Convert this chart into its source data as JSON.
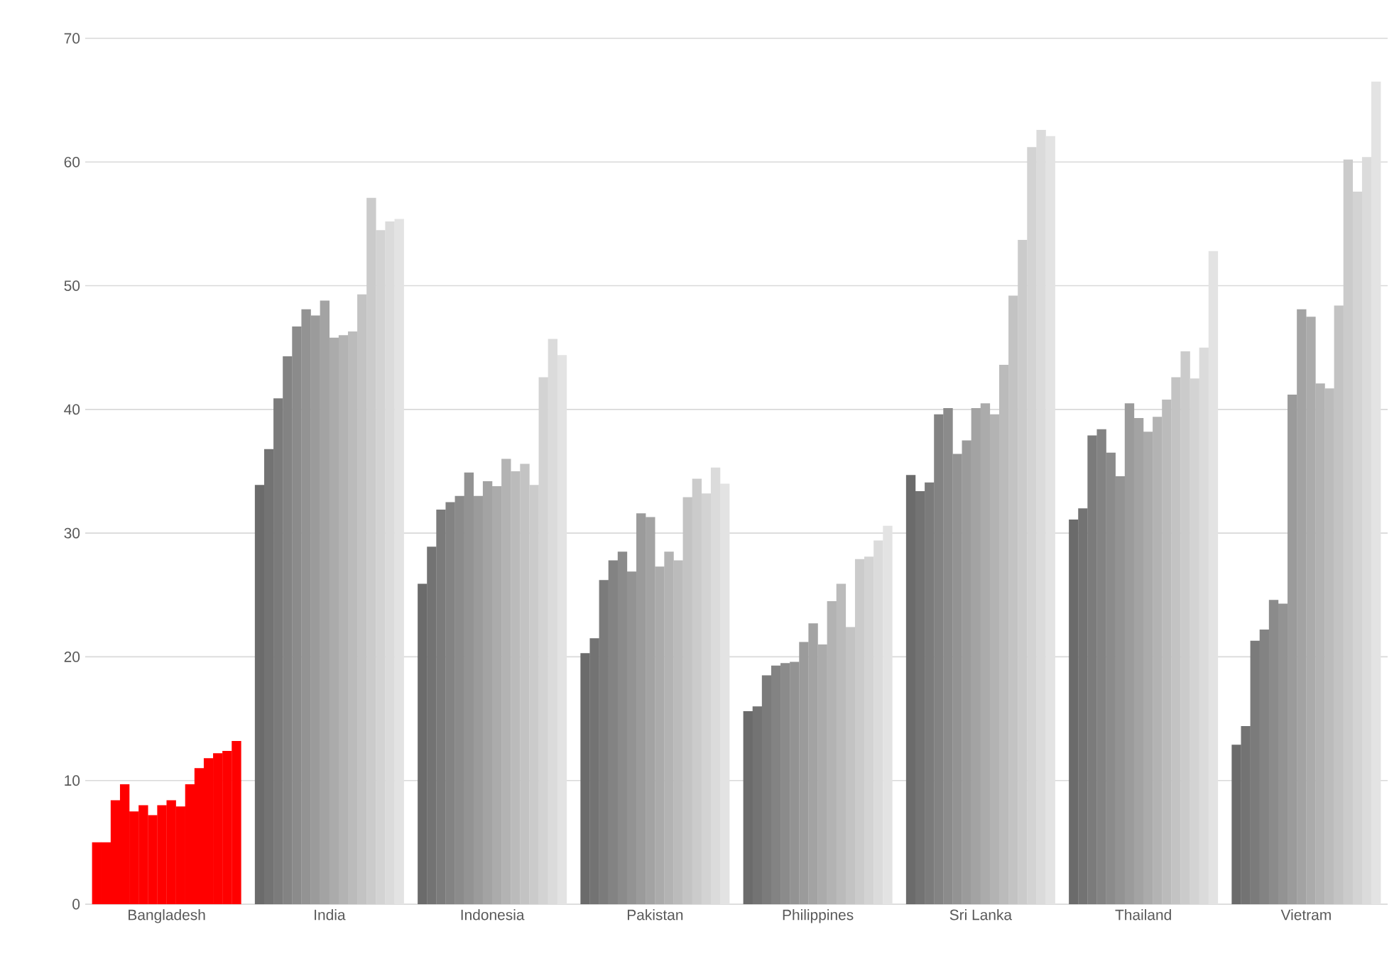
{
  "chart_data": {
    "type": "bar",
    "categories": [
      "Bangladesh",
      "India",
      "Indonesia",
      "Pakistan",
      "Philippines",
      "Sri Lanka",
      "Thailand",
      "Vietram"
    ],
    "ylim": [
      0,
      70
    ],
    "yticks": [
      0,
      10,
      20,
      30,
      40,
      50,
      60,
      70
    ],
    "grid": "y",
    "series": [
      {
        "colors": [
          "#ff0000",
          "#6b6b6b",
          "#6b6b6b",
          "#6b6b6b",
          "#6b6b6b",
          "#6b6b6b",
          "#6b6b6b",
          "#6b6b6b"
        ],
        "values": [
          5.0,
          33.9,
          25.9,
          20.3,
          15.6,
          34.7,
          31.1,
          12.9
        ]
      },
      {
        "colors": [
          "#ff0000",
          "#737373",
          "#737373",
          "#737373",
          "#737373",
          "#737373",
          "#737373",
          "#737373"
        ],
        "values": [
          5.0,
          36.8,
          28.9,
          21.5,
          16.0,
          33.4,
          32.0,
          14.4
        ]
      },
      {
        "colors": [
          "#ff0000",
          "#7b7b7b",
          "#7b7b7b",
          "#7b7b7b",
          "#7b7b7b",
          "#7b7b7b",
          "#7b7b7b",
          "#7b7b7b"
        ],
        "values": [
          8.4,
          40.9,
          31.9,
          26.2,
          18.5,
          34.1,
          37.9,
          21.3
        ]
      },
      {
        "colors": [
          "#ff0000",
          "#838383",
          "#838383",
          "#838383",
          "#838383",
          "#838383",
          "#838383",
          "#838383"
        ],
        "values": [
          9.7,
          44.3,
          32.5,
          27.8,
          19.3,
          39.6,
          38.4,
          22.2
        ]
      },
      {
        "colors": [
          "#ff0000",
          "#8b8b8b",
          "#8b8b8b",
          "#8b8b8b",
          "#8b8b8b",
          "#8b8b8b",
          "#8b8b8b",
          "#8b8b8b"
        ],
        "values": [
          7.5,
          46.7,
          33.0,
          28.5,
          19.5,
          40.1,
          36.5,
          24.6
        ]
      },
      {
        "colors": [
          "#ff0000",
          "#939393",
          "#939393",
          "#939393",
          "#939393",
          "#939393",
          "#939393",
          "#939393"
        ],
        "values": [
          8.0,
          48.1,
          34.9,
          26.9,
          19.6,
          36.4,
          34.6,
          24.3
        ]
      },
      {
        "colors": [
          "#ff0000",
          "#9b9b9b",
          "#9b9b9b",
          "#9b9b9b",
          "#9b9b9b",
          "#9b9b9b",
          "#9b9b9b",
          "#9b9b9b"
        ],
        "values": [
          7.2,
          47.6,
          33.0,
          31.6,
          21.2,
          37.5,
          40.5,
          41.2
        ]
      },
      {
        "colors": [
          "#ff0000",
          "#a3a3a3",
          "#a3a3a3",
          "#a3a3a3",
          "#a3a3a3",
          "#a3a3a3",
          "#a3a3a3",
          "#a3a3a3"
        ],
        "values": [
          8.0,
          48.8,
          34.2,
          31.3,
          22.7,
          40.1,
          39.3,
          48.1
        ]
      },
      {
        "colors": [
          "#ff0000",
          "#ababab",
          "#ababab",
          "#ababab",
          "#ababab",
          "#ababab",
          "#ababab",
          "#ababab"
        ],
        "values": [
          8.4,
          45.8,
          33.8,
          27.3,
          21.0,
          40.5,
          38.2,
          47.5
        ]
      },
      {
        "colors": [
          "#ff0000",
          "#b3b3b3",
          "#b3b3b3",
          "#b3b3b3",
          "#b3b3b3",
          "#b3b3b3",
          "#b3b3b3",
          "#b3b3b3"
        ],
        "values": [
          7.9,
          46.0,
          36.0,
          28.5,
          24.5,
          39.6,
          39.4,
          42.1
        ]
      },
      {
        "colors": [
          "#ff0000",
          "#bbbbbb",
          "#bbbbbb",
          "#bbbbbb",
          "#bbbbbb",
          "#bbbbbb",
          "#bbbbbb",
          "#bbbbbb"
        ],
        "values": [
          9.7,
          46.3,
          35.0,
          27.8,
          25.9,
          43.6,
          40.8,
          41.7
        ]
      },
      {
        "colors": [
          "#ff0000",
          "#c3c3c3",
          "#c3c3c3",
          "#c3c3c3",
          "#c3c3c3",
          "#c3c3c3",
          "#c3c3c3",
          "#c3c3c3"
        ],
        "values": [
          11.0,
          49.3,
          35.6,
          32.9,
          22.4,
          49.2,
          42.6,
          48.4
        ]
      },
      {
        "colors": [
          "#ff0000",
          "#cbcbcb",
          "#cbcbcb",
          "#cbcbcb",
          "#cbcbcb",
          "#cbcbcb",
          "#cbcbcb",
          "#cbcbcb"
        ],
        "values": [
          11.8,
          57.1,
          33.9,
          34.4,
          27.9,
          53.7,
          44.7,
          60.2
        ]
      },
      {
        "colors": [
          "#ff0000",
          "#d3d3d3",
          "#d3d3d3",
          "#d3d3d3",
          "#d3d3d3",
          "#d3d3d3",
          "#d3d3d3",
          "#d3d3d3"
        ],
        "values": [
          12.2,
          54.5,
          42.6,
          33.2,
          28.1,
          61.2,
          42.5,
          57.6
        ]
      },
      {
        "colors": [
          "#ff0000",
          "#dbdbdb",
          "#dbdbdb",
          "#dbdbdb",
          "#dbdbdb",
          "#dbdbdb",
          "#dbdbdb",
          "#dbdbdb"
        ],
        "values": [
          12.4,
          55.2,
          45.7,
          35.3,
          29.4,
          62.6,
          45.0,
          60.4
        ]
      },
      {
        "colors": [
          "#ff0000",
          "#e3e3e3",
          "#e3e3e3",
          "#e3e3e3",
          "#e3e3e3",
          "#e3e3e3",
          "#e3e3e3",
          "#e3e3e3"
        ],
        "values": [
          13.2,
          55.4,
          44.4,
          34.0,
          30.6,
          62.1,
          52.8,
          66.5
        ]
      }
    ]
  }
}
